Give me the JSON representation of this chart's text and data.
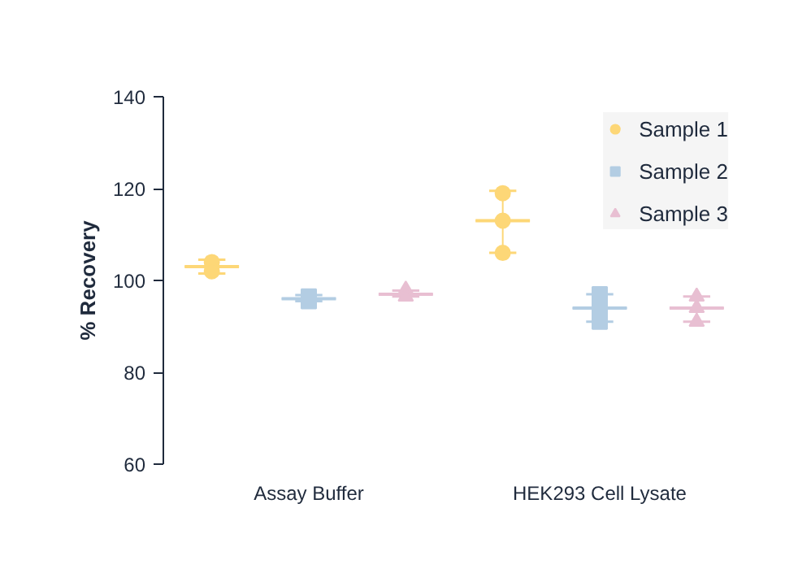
{
  "chart_data": {
    "type": "scatter",
    "ylabel": "% Recovery",
    "categories": [
      null,
      "Assay Buffer",
      null,
      null,
      "HEK293 Cell Lysate",
      null
    ],
    "ylim": [
      60,
      140
    ],
    "yticks": [
      60,
      80,
      100,
      120,
      140
    ],
    "grid": false,
    "legend": "top right",
    "series": [
      {
        "type": "box",
        "color": "#fdd777",
        "boxes": [
          {
            "low": 101.5,
            "q1": 103,
            "median": 103,
            "q3": 103,
            "high": 104.5
          },
          null,
          null,
          {
            "low": 106,
            "q1": 113,
            "median": 113,
            "q3": 113,
            "high": 119.5
          },
          null,
          null
        ]
      },
      {
        "type": "box",
        "color": "#b3cde3",
        "boxes": [
          null,
          {
            "low": 95.5,
            "q1": 96,
            "median": 96,
            "q3": 96,
            "high": 96.8
          },
          null,
          null,
          {
            "low": 91,
            "q1": 94,
            "median": 94,
            "q3": 94,
            "high": 97
          },
          null
        ]
      },
      {
        "type": "box",
        "color": "#e8bfd2",
        "boxes": [
          null,
          null,
          {
            "low": 96.5,
            "q1": 97,
            "median": 97,
            "q3": 97,
            "high": 97.8
          },
          null,
          null,
          {
            "low": 91,
            "q1": 94,
            "median": 94,
            "q3": 94,
            "high": 96.5
          }
        ]
      },
      {
        "name": "Sample 1",
        "color": "#fdd777",
        "marker": "circle",
        "values": [
          104,
          null,
          null,
          119,
          null,
          null
        ]
      },
      {
        "color": "#fdd777",
        "marker": "circle",
        "values": [
          102,
          null,
          null,
          113,
          null,
          null
        ]
      },
      {
        "color": "#fdd777",
        "marker": "circle",
        "values": [
          null,
          null,
          null,
          106,
          null,
          null
        ]
      },
      {
        "name": "Sample 2",
        "color": "#b3cde3",
        "marker": "square",
        "values": [
          null,
          96.5,
          null,
          null,
          97,
          null
        ]
      },
      {
        "color": "#b3cde3",
        "marker": "square",
        "values": [
          null,
          95.5,
          null,
          null,
          94,
          null
        ]
      },
      {
        "color": "#b3cde3",
        "marker": "square",
        "values": [
          null,
          null,
          null,
          null,
          91,
          null
        ]
      },
      {
        "name": "Sample 3",
        "color": "#e8bfd2",
        "marker": "triangle",
        "values": [
          null,
          null,
          98,
          null,
          null,
          96.5
        ]
      },
      {
        "color": "#e8bfd2",
        "marker": "triangle",
        "values": [
          null,
          null,
          96.5,
          null,
          null,
          94
        ]
      },
      {
        "color": "#e8bfd2",
        "marker": "triangle",
        "values": [
          null,
          null,
          null,
          null,
          null,
          91
        ]
      }
    ]
  }
}
